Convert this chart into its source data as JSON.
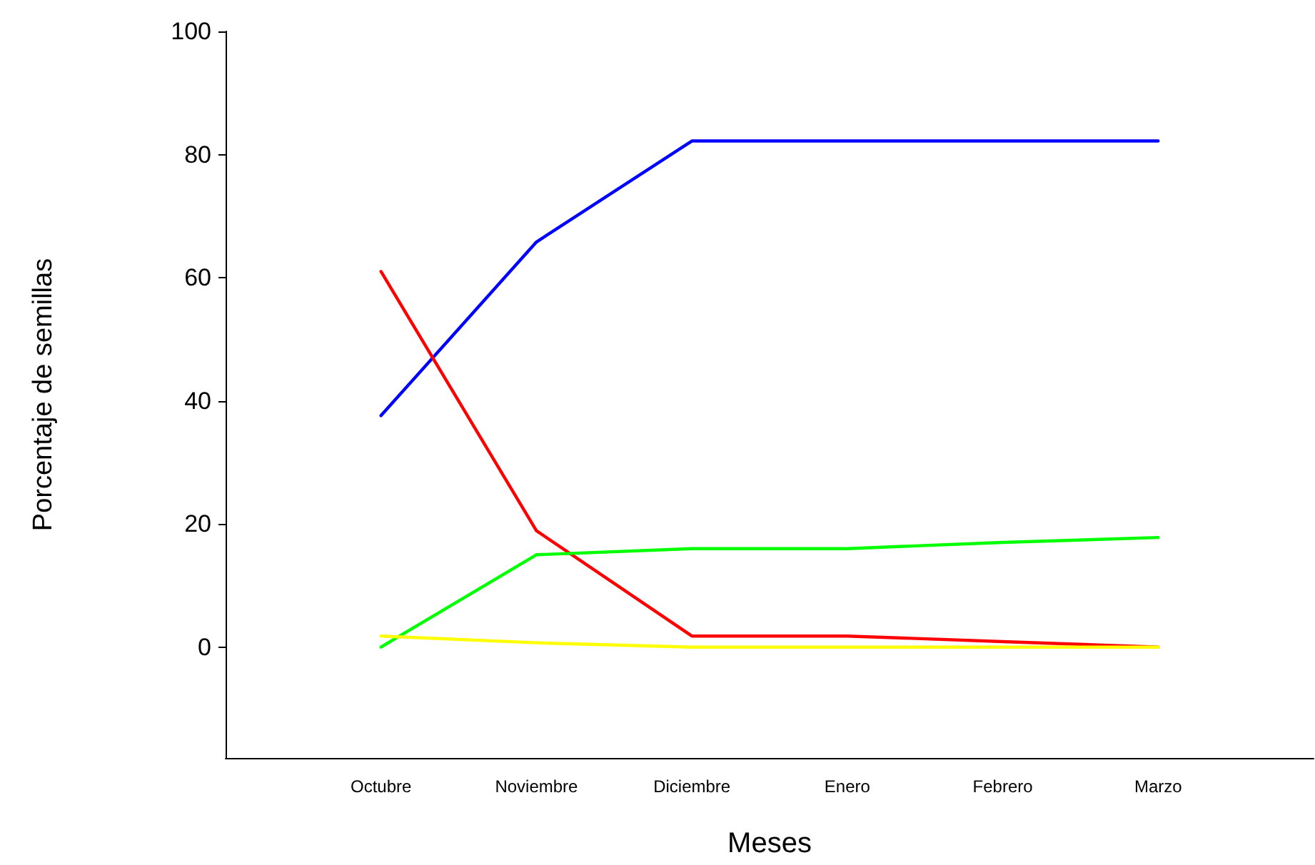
{
  "chart_data": {
    "type": "line",
    "xlabel": "Meses",
    "ylabel": "Porcentaje de semillas",
    "categories": [
      "Octubre",
      "Noviembre",
      "Diciembre",
      "Enero",
      "Febrero",
      "Marzo"
    ],
    "series": [
      {
        "color": "#0000ff",
        "values": [
          37.6,
          65.8,
          82.2,
          82.2,
          82.2,
          82.2
        ]
      },
      {
        "color": "#ff0000",
        "values": [
          61,
          18.9,
          1.8,
          1.8,
          0.9,
          0
        ]
      },
      {
        "color": "#00ff00",
        "values": [
          0,
          15,
          16,
          16,
          17,
          17.8
        ]
      },
      {
        "color": "#ffff00",
        "values": [
          1.8,
          0.7,
          0,
          0,
          0,
          0
        ]
      }
    ],
    "ylim": [
      -18,
      100
    ],
    "yticks": [
      0,
      20,
      40,
      60,
      80,
      100
    ],
    "grid": false,
    "marker": "none",
    "line_style": "solid"
  }
}
